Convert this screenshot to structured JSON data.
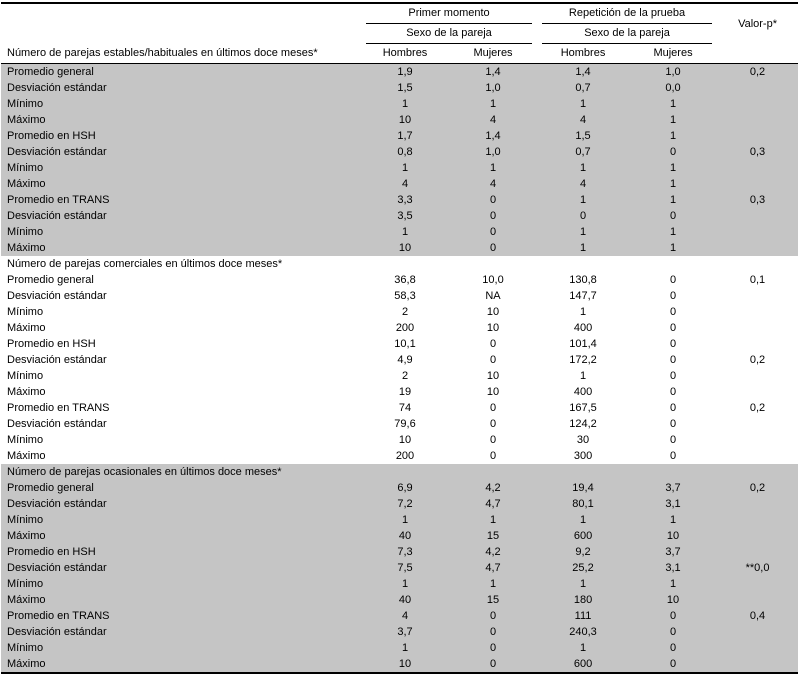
{
  "colors": {
    "shaded_row": "#c5c5c5",
    "border": "#000000",
    "background": "#ffffff"
  },
  "table": {
    "header": {
      "group1": "Primer momento",
      "group2": "Repetición de la prueba",
      "subheader": "Sexo de la pareja",
      "valor_p": "Valor-p*",
      "row_label_header": "Número de parejas estables/habituales en últimos doce meses*",
      "columns": [
        "Hombres",
        "Mujeres",
        "Hombres",
        "Mujeres"
      ]
    },
    "sections": [
      {
        "title": null,
        "shaded": true,
        "rows": [
          {
            "label": "Promedio general",
            "values": [
              "1,9",
              "1,4",
              "1,4",
              "1,0"
            ],
            "p": "0,2"
          },
          {
            "label": "Desviación estándar",
            "values": [
              "1,5",
              "1,0",
              "0,7",
              "0,0"
            ],
            "p": null
          },
          {
            "label": "Mínimo",
            "values": [
              "1",
              "1",
              "1",
              "1"
            ],
            "p": null
          },
          {
            "label": "Máximo",
            "values": [
              "10",
              "4",
              "4",
              "1"
            ],
            "p": null
          },
          {
            "label": "Promedio en HSH",
            "values": [
              "1,7",
              "1,4",
              "1,5",
              "1"
            ],
            "p": null
          },
          {
            "label": "Desviación estándar",
            "values": [
              "0,8",
              "1,0",
              "0,7",
              "0"
            ],
            "p": "0,3"
          },
          {
            "label": "Mínimo",
            "values": [
              "1",
              "1",
              "1",
              "1"
            ],
            "p": null
          },
          {
            "label": "Máximo",
            "values": [
              "4",
              "4",
              "4",
              "1"
            ],
            "p": null
          },
          {
            "label": "Promedio en TRANS",
            "values": [
              "3,3",
              "0",
              "1",
              "1"
            ],
            "p": "0,3"
          },
          {
            "label": "Desviación estándar",
            "values": [
              "3,5",
              "0",
              "0",
              "0"
            ],
            "p": null
          },
          {
            "label": "Mínimo",
            "values": [
              "1",
              "0",
              "1",
              "1"
            ],
            "p": null
          },
          {
            "label": "Máximo",
            "values": [
              "10",
              "0",
              "1",
              "1"
            ],
            "p": null
          }
        ]
      },
      {
        "title": "Número de parejas comerciales en últimos doce meses*",
        "shaded": false,
        "rows": [
          {
            "label": "Promedio general",
            "values": [
              "36,8",
              "10,0",
              "130,8",
              "0"
            ],
            "p": "0,1"
          },
          {
            "label": "Desviación estándar",
            "values": [
              "58,3",
              "NA",
              "147,7",
              "0"
            ],
            "p": null
          },
          {
            "label": "Mínimo",
            "values": [
              "2",
              "10",
              "1",
              "0"
            ],
            "p": null
          },
          {
            "label": "Máximo",
            "values": [
              "200",
              "10",
              "400",
              "0"
            ],
            "p": null
          },
          {
            "label": "Promedio en HSH",
            "values": [
              "10,1",
              "0",
              "101,4",
              "0"
            ],
            "p": null
          },
          {
            "label": "Desviación estándar",
            "values": [
              "4,9",
              "0",
              "172,2",
              "0"
            ],
            "p": "0,2"
          },
          {
            "label": "Mínimo",
            "values": [
              "2",
              "10",
              "1",
              "0"
            ],
            "p": null
          },
          {
            "label": "Máximo",
            "values": [
              "19",
              "10",
              "400",
              "0"
            ],
            "p": null
          },
          {
            "label": "Promedio en TRANS",
            "values": [
              "74",
              "0",
              "167,5",
              "0"
            ],
            "p": "0,2"
          },
          {
            "label": "Desviación estándar",
            "values": [
              "79,6",
              "0",
              "124,2",
              "0"
            ],
            "p": null
          },
          {
            "label": "Mínimo",
            "values": [
              "10",
              "0",
              "30",
              "0"
            ],
            "p": null
          },
          {
            "label": "Máximo",
            "values": [
              "200",
              "0",
              "300",
              "0"
            ],
            "p": null
          }
        ]
      },
      {
        "title": "Número de parejas ocasionales en últimos doce meses*",
        "shaded": true,
        "rows": [
          {
            "label": "Promedio general",
            "values": [
              "6,9",
              "4,2",
              "19,4",
              "3,7"
            ],
            "p": "0,2"
          },
          {
            "label": "Desviación estándar",
            "values": [
              "7,2",
              "4,7",
              "80,1",
              "3,1"
            ],
            "p": null
          },
          {
            "label": "Mínimo",
            "values": [
              "1",
              "1",
              "1",
              "1"
            ],
            "p": null
          },
          {
            "label": "Máximo",
            "values": [
              "40",
              "15",
              "600",
              "10"
            ],
            "p": null
          },
          {
            "label": "Promedio en HSH",
            "values": [
              "7,3",
              "4,2",
              "9,2",
              "3,7"
            ],
            "p": null
          },
          {
            "label": "Desviación estándar",
            "values": [
              "7,5",
              "4,7",
              "25,2",
              "3,1"
            ],
            "p": "**0,0"
          },
          {
            "label": "Mínimo",
            "values": [
              "1",
              "1",
              "1",
              "1"
            ],
            "p": null
          },
          {
            "label": "Máximo",
            "values": [
              "40",
              "15",
              "180",
              "10"
            ],
            "p": null
          },
          {
            "label": "Promedio en TRANS",
            "values": [
              "4",
              "0",
              "111",
              "0"
            ],
            "p": "0,4"
          },
          {
            "label": "Desviación estándar",
            "values": [
              "3,7",
              "0",
              "240,3",
              "0"
            ],
            "p": null
          },
          {
            "label": "Mínimo",
            "values": [
              "1",
              "0",
              "1",
              "0"
            ],
            "p": null
          },
          {
            "label": "Máximo",
            "values": [
              "10",
              "0",
              "600",
              "0"
            ],
            "p": null
          }
        ]
      }
    ]
  }
}
